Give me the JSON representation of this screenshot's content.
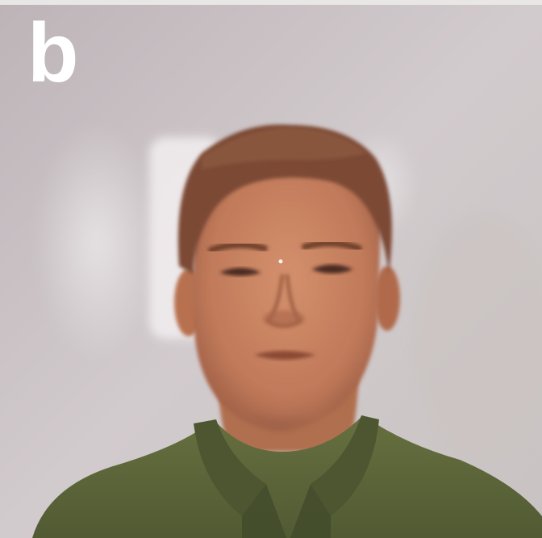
{
  "figure": {
    "panel_label": "b"
  },
  "photo": {
    "subject": "portrait-photo",
    "colors": {
      "background_wall": "#c9c2c4",
      "light_patch": "#ede8ea",
      "skin": "#c98866",
      "skin_shadow": "#a8684e",
      "hair": "#7a4a35",
      "shirt": "#5f6a3e",
      "shirt_shadow": "#454d2c",
      "panel_label_color": "#ffffff"
    }
  }
}
